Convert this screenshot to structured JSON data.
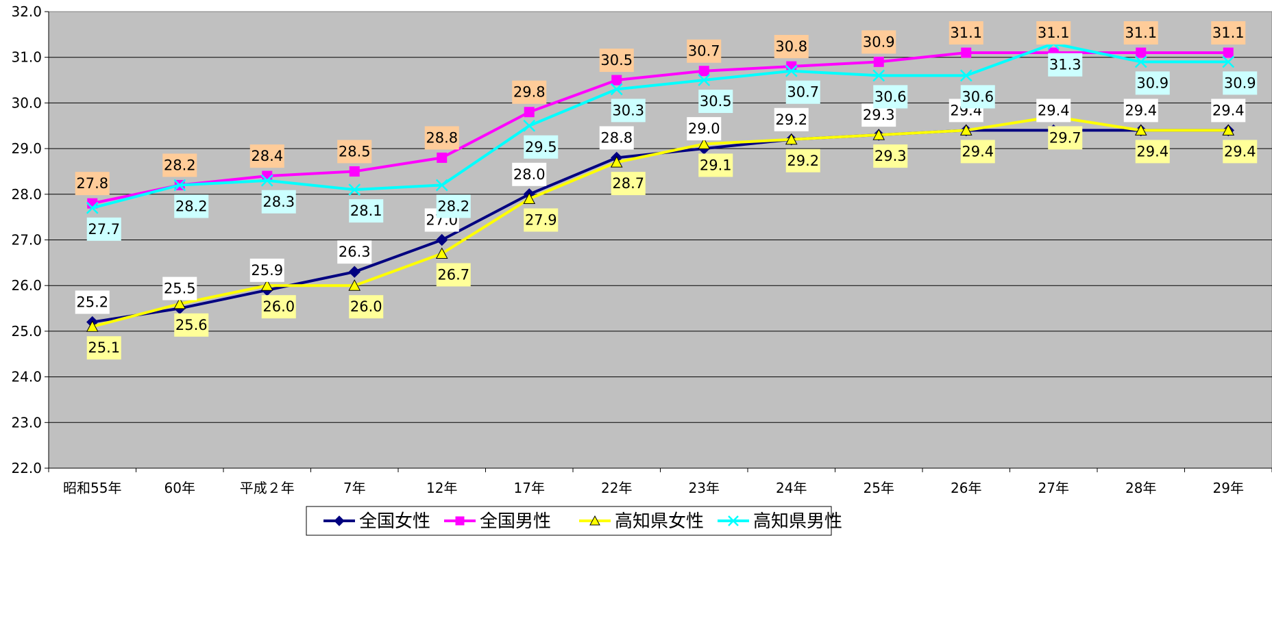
{
  "chart_data": {
    "type": "line",
    "categories": [
      "昭和55年",
      "60年",
      "平成２年",
      "7年",
      "12年",
      "17年",
      "22年",
      "23年",
      "24年",
      "25年",
      "26年",
      "27年",
      "28年",
      "29年"
    ],
    "ylim": [
      22.0,
      32.0
    ],
    "yticks": [
      "32.0",
      "31.0",
      "30.0",
      "29.0",
      "28.0",
      "27.0",
      "26.0",
      "25.0",
      "24.0",
      "23.0",
      "22.0"
    ],
    "grid": true,
    "legend_position": "bottom",
    "series": [
      {
        "name": "全国女性",
        "color": "#000080",
        "marker": "diamond",
        "label_bg": "#ffffff",
        "label_position": "above",
        "values": [
          25.2,
          25.5,
          25.9,
          26.3,
          27.0,
          28.0,
          28.8,
          29.0,
          29.2,
          29.3,
          29.4,
          29.4,
          29.4,
          29.4
        ],
        "labels": [
          "25.2",
          "25.5",
          "25.9",
          "26.3",
          "27.0",
          "28.0",
          "28.8",
          "29.0",
          "29.2",
          "29.3",
          "29.4",
          "29.4",
          "29.4",
          "29.4"
        ]
      },
      {
        "name": "全国男性",
        "color": "#ff00ff",
        "marker": "square",
        "label_bg": "#ffcc99",
        "label_position": "above",
        "values": [
          27.8,
          28.2,
          28.4,
          28.5,
          28.8,
          29.8,
          30.5,
          30.7,
          30.8,
          30.9,
          31.1,
          31.1,
          31.1,
          31.1
        ],
        "labels": [
          "27.8",
          "28.2",
          "28.4",
          "28.5",
          "28.8",
          "29.8",
          "30.5",
          "30.7",
          "30.8",
          "30.9",
          "31.1",
          "31.1",
          "31.1",
          "31.1"
        ]
      },
      {
        "name": "高知県女性",
        "color": "#ffff00",
        "marker": "triangle",
        "label_bg": "#ffff99",
        "label_position": "below",
        "values": [
          25.1,
          25.6,
          26.0,
          26.0,
          26.7,
          27.9,
          28.7,
          29.1,
          29.2,
          29.3,
          29.4,
          29.7,
          29.4,
          29.4
        ],
        "labels": [
          "25.1",
          "25.6",
          "26.0",
          "26.0",
          "26.7",
          "27.9",
          "28.7",
          "29.1",
          "29.2",
          "29.3",
          "29.4",
          "29.7",
          "29.4",
          "29.4"
        ]
      },
      {
        "name": "高知県男性",
        "color": "#00ffff",
        "marker": "x",
        "label_bg": "#ccffff",
        "label_position": "below",
        "values": [
          27.7,
          28.2,
          28.3,
          28.1,
          28.2,
          29.5,
          30.3,
          30.5,
          30.7,
          30.6,
          30.6,
          31.3,
          30.9,
          30.9
        ],
        "labels": [
          "27.7",
          "28.2",
          "28.3",
          "28.1",
          "28.2",
          "29.5",
          "30.3",
          "30.5",
          "30.7",
          "30.6",
          "30.6",
          "31.3",
          "30.9",
          "30.9"
        ]
      }
    ]
  }
}
